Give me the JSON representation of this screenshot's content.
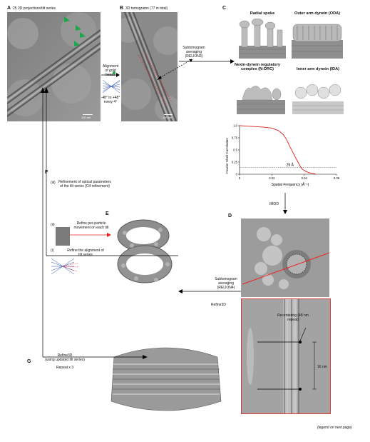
{
  "panels": {
    "A": {
      "letter": "A",
      "caption": "25 2D projections/tilt series",
      "scalebar": "100 nm"
    },
    "B": {
      "letter": "B",
      "caption": "3D tomograms (77 in total)",
      "scalebar": "100 nm"
    },
    "C": {
      "letter": "C",
      "subtitles": [
        "Radial spoke",
        "Outer arm dynein (ODA)",
        "Nexin-dynein regulatory complex (N-DRC)",
        "Inner arm dynein (IDA)"
      ]
    },
    "D": {
      "letter": "D",
      "recenter_label": "Recentering (48 nm repeat)",
      "measure_label": "16 nm"
    },
    "E": {
      "letter": "E"
    },
    "F": {
      "letter": "F",
      "step_iii": "(iii)",
      "step_iii_text": "Refinement of optical parameters of the tilt series (Ctf refinement)",
      "step_ii": "(ii)",
      "step_ii_text": "Refine per-particle movement on each tilt",
      "step_i": "(i)",
      "step_i_text": "Refine the alignment of tilt series"
    },
    "G": {
      "letter": "G",
      "refine_label": "Refine3D",
      "refine_sub": "(using updated tilt series)",
      "repeat": "Repeat x 3"
    }
  },
  "arrows": {
    "alignment": "Alignment of gold beads",
    "tilt_range": "-48° to +48° every 4°",
    "subtomo3": "Subtomogram averaging (RELION3)",
    "imod": "IMOD",
    "subtomo4": "Subtomogram averaging (RELION4)",
    "refine3d": "Refine3D"
  },
  "footer": "(legend on next page)",
  "chart_data": {
    "type": "line",
    "xlabel": "Spatial Frequency (Å⁻¹)",
    "ylabel": "Fourier Shell Correlation",
    "xlim": [
      0,
      0.06
    ],
    "ylim": [
      0,
      1.0
    ],
    "xticks": [
      "0",
      "0.02",
      "0.04",
      "0.06"
    ],
    "yticks": [
      "0",
      "0.25",
      "0.5",
      "0.75",
      "1.0"
    ],
    "threshold": 0.143,
    "annotation": "26 Å",
    "color": "#e0201b",
    "x": [
      0,
      0.005,
      0.01,
      0.015,
      0.02,
      0.024,
      0.027,
      0.029,
      0.031,
      0.033,
      0.035,
      0.037,
      0.038,
      0.039,
      0.041,
      0.043,
      0.045,
      0.047
    ],
    "y": [
      1.0,
      0.99,
      0.98,
      0.97,
      0.95,
      0.9,
      0.82,
      0.72,
      0.58,
      0.45,
      0.32,
      0.2,
      0.14,
      0.1,
      0.06,
      0.03,
      0.02,
      0.01
    ]
  }
}
